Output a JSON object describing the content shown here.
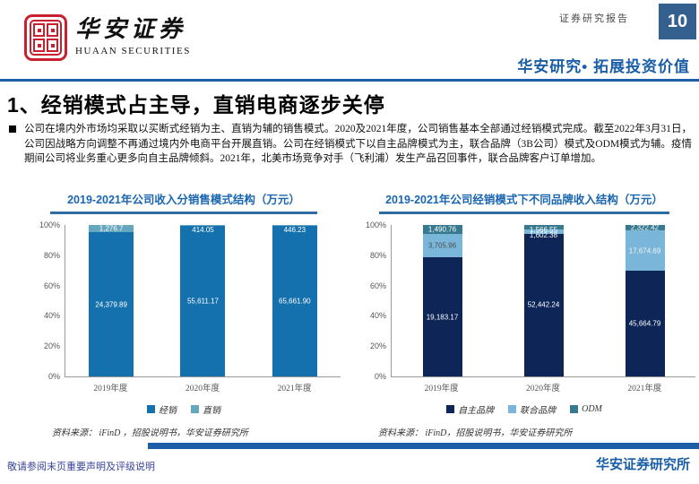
{
  "header": {
    "logo_zh": "华安证券",
    "logo_en": "HUAAN SECURITIES",
    "report_type": "证券研究报告",
    "page_number": "10",
    "slogan": "华安研究• 拓展投资价值"
  },
  "title": "1、经销模式占主导，直销电商逐步关停",
  "body": {
    "bullet_text": "公司在境内外市场均采取以买断式经销为主、直销为辅的销售模式。2020及2021年度，公司销售基本全部通过经销模式完成。截至2022年3月31日，公司因战略方向调整不再通过境内外电商平台开展直销。公司在经销模式下以自主品牌模式为主，联合品牌（3B公司）模式及ODM模式为辅。疫情期间公司将业务重心更多向自主品牌倾斜。2021年，北美市场竞争对手（飞利浦）发生产品召回事件，联合品牌客户订单增加。"
  },
  "chart_data": [
    {
      "type": "bar",
      "stacked": true,
      "percent": true,
      "title": "2019-2021年公司收入分销售模式结构（万元）",
      "categories": [
        "2019年度",
        "2020年度",
        "2021年度"
      ],
      "series": [
        {
          "name": "经销",
          "color": "#1571ad",
          "label_colors": [
            "#ffffff",
            "#ffffff",
            "#ffffff"
          ],
          "values": [
            24379.89,
            55611.17,
            65661.9
          ],
          "labels": [
            "24,379.89",
            "55,611.17",
            "65,661.90"
          ]
        },
        {
          "name": "直销",
          "color": "#66a6be",
          "label_colors": [
            "#ffffff",
            "#ffffff",
            "#ffffff"
          ],
          "values": [
            1276.7,
            414.05,
            446.23
          ],
          "labels": [
            "1,276.7",
            "414.05",
            "446.23"
          ]
        }
      ],
      "ylabels": [
        "0%",
        "20%",
        "40%",
        "60%",
        "80%",
        "100%"
      ],
      "ylim": [
        0,
        100
      ],
      "grid": false,
      "legend_position": "bottom",
      "source": "资料来源： iFinD ，招股说明书，华安证券研究所"
    },
    {
      "type": "bar",
      "stacked": true,
      "percent": true,
      "title": "2019-2021年公司经销模式下不同品牌收入结构（万元）",
      "categories": [
        "2019年度",
        "2020年度",
        "2021年度"
      ],
      "series": [
        {
          "name": "自主品牌",
          "color": "#0e2557",
          "label_colors": [
            "#ffffff",
            "#ffffff",
            "#ffffff"
          ],
          "values": [
            19183.17,
            52442.24,
            45664.79
          ],
          "labels": [
            "19,183.17",
            "52,442.24",
            "45,664.79"
          ]
        },
        {
          "name": "联合品牌",
          "color": "#7ab6d9",
          "label_colors": [
            "#4d4d4d",
            "#f5f5f5",
            "#f5f5f5"
          ],
          "values": [
            3705.96,
            1602.38,
            17674.69
          ],
          "labels": [
            "3,705.96",
            "1,602.38",
            "17,674.69"
          ]
        },
        {
          "name": "ODM",
          "color": "#37798e",
          "label_colors": [
            "#ffffff",
            "#ffffff",
            "#ffffff"
          ],
          "values": [
            1490.76,
            1566.55,
            2322.42
          ],
          "labels": [
            "1,490.76",
            "1,566.55",
            "2,322.42"
          ]
        }
      ],
      "ylabels": [
        "0%",
        "20%",
        "40%",
        "60%",
        "80%",
        "100%"
      ],
      "ylim": [
        0,
        100
      ],
      "grid": false,
      "legend_position": "bottom",
      "source": "资料来源： iFinD，招股说明书，华安证券研究所"
    }
  ],
  "footer": {
    "left": "敬请参阅末页重要声明及评级说明",
    "right": "华安证券研究所"
  }
}
